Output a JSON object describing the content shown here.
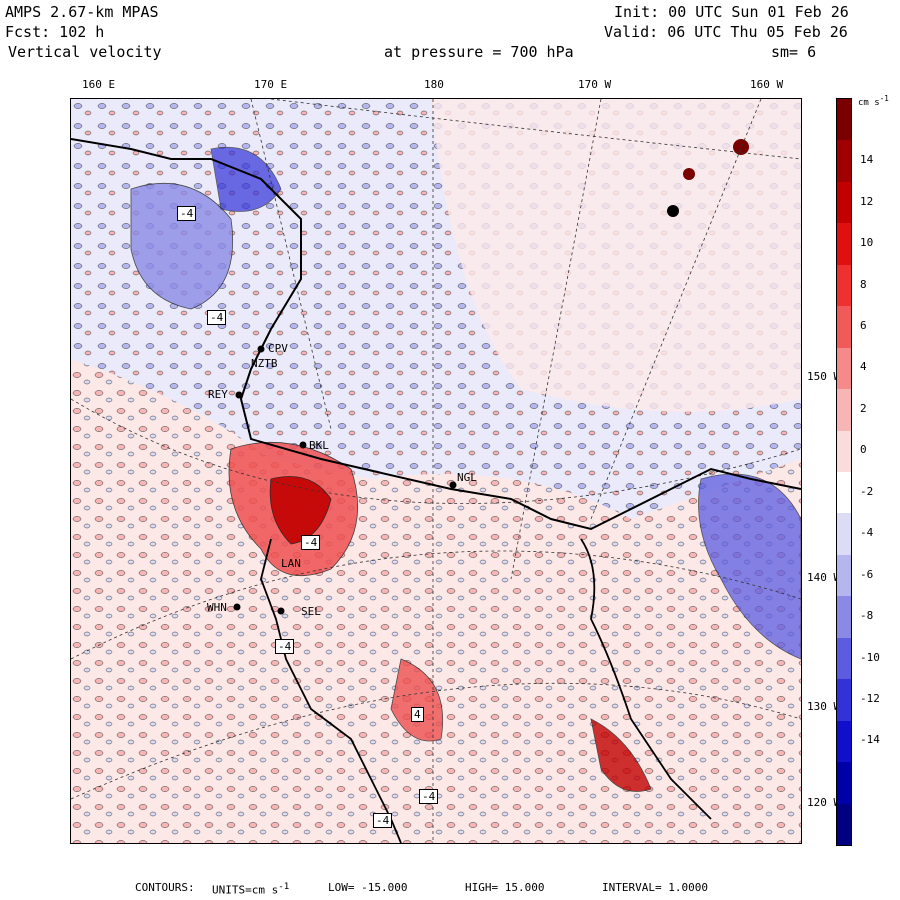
{
  "header": {
    "model": "AMPS 2.67-km MPAS",
    "init": "Init: 00 UTC Sun 01 Feb 26",
    "forecast": "Fcst:  102 h",
    "valid": "Valid: 06 UTC Thu 05 Feb 26",
    "field": "Vertical velocity",
    "pressure": "at pressure =  700 hPa",
    "smoothing": "sm= 6"
  },
  "longitude_labels": [
    "160 E",
    "170 E",
    "180",
    "170 W",
    "160 W"
  ],
  "latitude_labels": [
    "150 W",
    "140 W",
    "130 W",
    "120 W"
  ],
  "stations": [
    {
      "id": "CPV"
    },
    {
      "id": "NZTB"
    },
    {
      "id": "REY"
    },
    {
      "id": "BKL"
    },
    {
      "id": "NGL"
    },
    {
      "id": "LAN"
    },
    {
      "id": "WHN"
    },
    {
      "id": "SEL"
    }
  ],
  "box_labels": [
    "-4",
    "-4",
    "-4",
    "-4",
    "4",
    "-4",
    "-4"
  ],
  "colorbar": {
    "units": "cm s",
    "units_exp": "-1",
    "ticks": [
      "14",
      "12",
      "10",
      "8",
      "6",
      "4",
      "2",
      "0",
      "-2",
      "-4",
      "-6",
      "-8",
      "-10",
      "-12",
      "-14"
    ],
    "colors": [
      "#7a0000",
      "#a00000",
      "#c20000",
      "#de1010",
      "#ef3030",
      "#f25a5a",
      "#f48a8a",
      "#f7b5b5",
      "#fadcdc",
      "#ffffff",
      "#dcdcf7",
      "#b6b6ee",
      "#8a8ae6",
      "#5c5ce0",
      "#3232d8",
      "#1010cc",
      "#0000a8",
      "#000080"
    ]
  },
  "footer": {
    "contours": "CONTOURS:",
    "units": "UNITS=cm s",
    "units_exp": "-1",
    "low": "LOW= -15.000",
    "high": "HIGH=  15.000",
    "interval": "INTERVAL=  1.0000"
  }
}
